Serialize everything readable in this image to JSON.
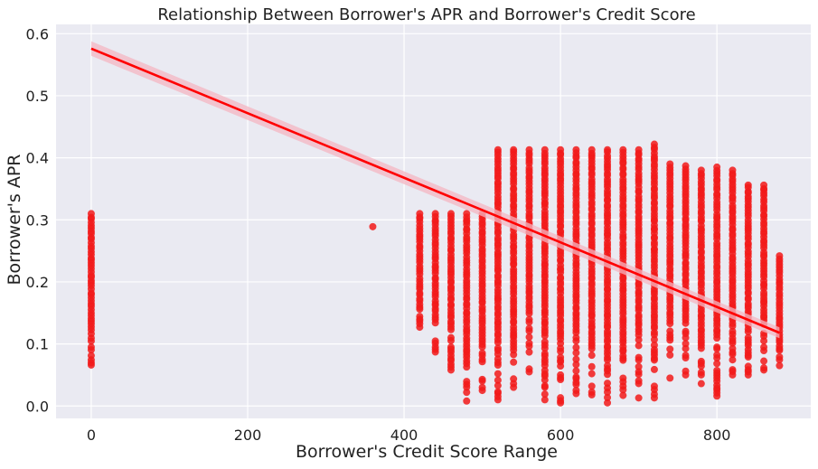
{
  "chart_data": {
    "type": "scatter",
    "title": "Relationship Between Borrower's APR and Borrower's Credit Score",
    "xlabel": "Borrower's Credit Score Range",
    "ylabel": "Borrower's APR",
    "xlim": [
      -45,
      920
    ],
    "ylim": [
      -0.02,
      0.615
    ],
    "xticks": [
      0,
      200,
      400,
      600,
      800
    ],
    "xtick_labels": [
      "0",
      "200",
      "400",
      "600",
      "800"
    ],
    "yticks": [
      0.0,
      0.1,
      0.2,
      0.3,
      0.4,
      0.5,
      0.6
    ],
    "ytick_labels": [
      "0.0",
      "0.1",
      "0.2",
      "0.3",
      "0.4",
      "0.5",
      "0.6"
    ],
    "grid": true,
    "style": "seaborn darkgrid",
    "colors": {
      "background": "#EAEAF2",
      "grid": "#FFFFFF",
      "points": "#F21A1A",
      "line": "#FF0000",
      "ci_band": "#F4B6C2"
    },
    "point_columns": [
      {
        "x": 0,
        "min": 0.066,
        "max": 0.31
      },
      {
        "x": 360,
        "min": 0.289,
        "max": 0.289
      },
      {
        "x": 420,
        "min": 0.127,
        "max": 0.31
      },
      {
        "x": 440,
        "min": 0.087,
        "max": 0.31
      },
      {
        "x": 460,
        "min": 0.058,
        "max": 0.31
      },
      {
        "x": 480,
        "min": 0.008,
        "max": 0.31
      },
      {
        "x": 500,
        "min": 0.025,
        "max": 0.31
      },
      {
        "x": 520,
        "min": 0.01,
        "max": 0.413
      },
      {
        "x": 540,
        "min": 0.03,
        "max": 0.413
      },
      {
        "x": 560,
        "min": 0.055,
        "max": 0.413
      },
      {
        "x": 580,
        "min": 0.01,
        "max": 0.413
      },
      {
        "x": 600,
        "min": 0.005,
        "max": 0.413
      },
      {
        "x": 620,
        "min": 0.02,
        "max": 0.413
      },
      {
        "x": 640,
        "min": 0.018,
        "max": 0.413
      },
      {
        "x": 660,
        "min": 0.005,
        "max": 0.413
      },
      {
        "x": 680,
        "min": 0.017,
        "max": 0.413
      },
      {
        "x": 700,
        "min": 0.013,
        "max": 0.413
      },
      {
        "x": 720,
        "min": 0.013,
        "max": 0.422
      },
      {
        "x": 740,
        "min": 0.045,
        "max": 0.39
      },
      {
        "x": 760,
        "min": 0.05,
        "max": 0.387
      },
      {
        "x": 780,
        "min": 0.036,
        "max": 0.38
      },
      {
        "x": 800,
        "min": 0.016,
        "max": 0.385
      },
      {
        "x": 820,
        "min": 0.05,
        "max": 0.38
      },
      {
        "x": 840,
        "min": 0.05,
        "max": 0.356
      },
      {
        "x": 860,
        "min": 0.058,
        "max": 0.356
      },
      {
        "x": 880,
        "min": 0.065,
        "max": 0.242
      }
    ],
    "regression": {
      "x": [
        0,
        880
      ],
      "y": [
        0.576,
        0.118
      ]
    }
  }
}
